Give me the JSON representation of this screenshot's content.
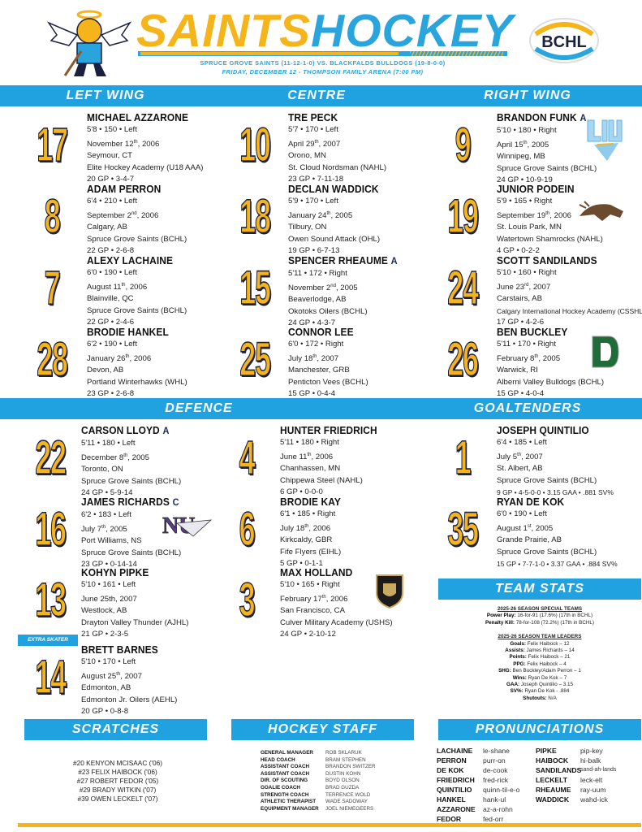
{
  "header": {
    "title_a": "SAINTS",
    "title_b": "HOCKEY",
    "matchup": "SPRUCE GROVE SAINTS (11-12-1-0) VS. BLACKFALDS BULLDOGS (19-8-0-0)",
    "event": "FRIDAY, DECEMBER 12 - THOMPSON FAMILY ARENA (7:00 PM)",
    "league_logo": "BCHL"
  },
  "sections": {
    "left_wing": "LEFT WING",
    "centre": "CENTRE",
    "right_wing": "RIGHT WING",
    "defence": "DEFENCE",
    "goaltenders": "GOALTENDERS",
    "team_stats": "TEAM STATS",
    "scratches": "SCRATCHES",
    "hockey_staff": "HOCKEY STAFF",
    "pronunciations": "PRONUNCIATIONS"
  },
  "extra_skater": "EXTRA SKATER",
  "roster": {
    "left_wing": [
      {
        "number": "17",
        "name": "MICHAEL AZZARONE",
        "body": "5'8 • 150 • Left",
        "date": "November 12",
        "ord": "th",
        "year": ", 2006",
        "hometown": "Seymour, CT",
        "team": "Elite Hockey Academy (U18 AAA)",
        "stats": "20 GP • 3-4-7"
      },
      {
        "number": "8",
        "name": "ADAM PERRON",
        "body": "6'4 • 210 • Left",
        "date": "September 2",
        "ord": "nd",
        "year": ", 2006",
        "hometown": "Calgary, AB",
        "team": "Spruce Grove Saints (BCHL)",
        "stats": "22 GP • 2-6-8"
      },
      {
        "number": "7",
        "name": "ALEXY LACHAINE",
        "body": "6'0 • 190 • Left",
        "date": "August 11",
        "ord": "th",
        "year": ", 2006",
        "hometown": "Blainville, QC",
        "team": "Spruce Grove Saints (BCHL)",
        "stats": "22 GP • 2-4-6"
      },
      {
        "number": "28",
        "name": "BRODIE HANKEL",
        "body": "6'2 • 190 • Left",
        "date": "January 26",
        "ord": "th",
        "year": ", 2006",
        "hometown": "Devon, AB",
        "team": "Portland Winterhawks (WHL)",
        "stats": "23 GP • 2-6-8"
      }
    ],
    "centre": [
      {
        "number": "10",
        "name": "TRE PECK",
        "body": "5'7 • 170 • Left",
        "date": "April 29",
        "ord": "th",
        "year": ", 2007",
        "hometown": "Orono, MN",
        "team": "St. Cloud Nordsman (NAHL)",
        "stats": "23 GP • 7-11-18"
      },
      {
        "number": "18",
        "name": "DECLAN WADDICK",
        "body": "5'9 • 170 • Left",
        "date": "January 24",
        "ord": "th",
        "year": ", 2005",
        "hometown": "Tilbury, ON",
        "team": "Owen Sound Attack (OHL)",
        "stats": "19 GP • 6-7-13"
      },
      {
        "number": "15",
        "name": "SPENCER RHEAUME",
        "badge": "A",
        "body": "5'11 • 172 • Right",
        "date": "November 2",
        "ord": "nd",
        "year": ", 2005",
        "hometown": "Beaverlodge, AB",
        "team": "Okotoks Oilers (BCHL)",
        "stats": "24 GP • 4-3-7"
      },
      {
        "number": "25",
        "name": "CONNOR LEE",
        "body": "6'0 • 172 • Right",
        "date": "July 18",
        "ord": "th",
        "year": ", 2007",
        "hometown": "Manchester, GRB",
        "team": "Penticton Vees (BCHL)",
        "stats": "15 GP • 0-4-4"
      }
    ],
    "right_wing": [
      {
        "number": "9",
        "name": "BRANDON FUNK",
        "badge": "A",
        "logo": "liu-logo",
        "body": "5'10 • 180 • Right",
        "date": "April 15",
        "ord": "th",
        "year": ", 2005",
        "hometown": "Winnipeg, MB",
        "team": "Spruce Grove Saints (BCHL)",
        "stats": "24 GP • 10-9-19"
      },
      {
        "number": "19",
        "name": "JUNIOR PODEIN",
        "logo": "mustang-logo",
        "body": "5'9 • 165 • Right",
        "date": "September 19",
        "ord": "th",
        "year": ", 2006",
        "hometown": "St. Louis Park, MN",
        "team": "Watertown Shamrocks (NAHL)",
        "stats": "4 GP • 0-2-2"
      },
      {
        "number": "24",
        "name": "SCOTT SANDILANDS",
        "body": "5'10 • 160 • Right",
        "date": "June 23",
        "ord": "rd",
        "year": ", 2007",
        "hometown": "Carstairs, AB",
        "team": "Calgary International Hockey Academy (CSSHL)",
        "team_small": true,
        "stats": "17 GP • 4-2-6"
      },
      {
        "number": "26",
        "name": "BEN BUCKLEY",
        "logo": "dartmouth-logo",
        "body": "5'11 • 170 • Right",
        "date": "February 8",
        "ord": "th",
        "year": ", 2005",
        "hometown": "Warwick, RI",
        "team": "Alberni Valley Bulldogs (BCHL)",
        "stats": "15 GP • 4-0-4"
      }
    ],
    "defence_a": [
      {
        "number": "22",
        "name": "CARSON LLOYD",
        "badge": "A",
        "body": "5'11 • 180 • Left",
        "date": "December 8",
        "ord": "th",
        "year": ", 2005",
        "hometown": "Toronto, ON",
        "team": "Spruce Grove Saints (BCHL)",
        "stats": "24 GP • 5-9-14"
      },
      {
        "number": "16",
        "name": "JAMES RICHARDS",
        "badge": "C",
        "logo": "niagara-logo",
        "body": "6'2 • 183 • Left",
        "date": "July 7",
        "ord": "th",
        "year": ", 2005",
        "hometown": "Port Williams, NS",
        "team": "Spruce Grove Saints (BCHL)",
        "stats": "23 GP • 0-14-14"
      },
      {
        "number": "13",
        "name": "KOHYN PIPKE",
        "body": "5'10 • 161 • Left",
        "date": "June 25th, 2007",
        "ord": "",
        "year": "",
        "hometown": "Westlock, AB",
        "team": "Drayton Valley Thunder (AJHL)",
        "stats": "21 GP • 2-3-5"
      },
      {
        "number": "14",
        "name": "BRETT BARNES",
        "body": "5'10 • 170 • Left",
        "date": "August 25",
        "ord": "th",
        "year": ", 2007",
        "hometown": "Edmonton, AB",
        "team": "Edmonton Jr. Oilers (AEHL)",
        "stats": "20 GP • 0-8-8"
      }
    ],
    "defence_b": [
      {
        "number": "4",
        "name": "HUNTER FRIEDRICH",
        "body": "5'11 • 180 • Right",
        "date": "June 11",
        "ord": "th",
        "year": ", 2006",
        "hometown": "Chanhassen, MN",
        "team": "Chippewa Steel (NAHL)",
        "stats": "6 GP • 0-0-0"
      },
      {
        "number": "6",
        "name": "BRODIE KAY",
        "body": "6'1 • 185 • Right",
        "date": "July 18",
        "ord": "th",
        "year": ", 2006",
        "hometown": "Kirkcaldy, GBR",
        "team": "Fife Flyers (EIHL)",
        "stats": "5 GP • 0-1-1"
      },
      {
        "number": "3",
        "name": "MAX HOLLAND",
        "logo": "army-logo",
        "body": "5'10 • 165 • Right",
        "date": "February 17",
        "ord": "th",
        "year": ", 2006",
        "hometown": "San Francisco, CA",
        "team": "Culver Military Academy (USHS)",
        "stats": "24 GP • 2-10-12"
      }
    ],
    "goaltenders": [
      {
        "number": "1",
        "name": "JOSEPH QUINTILIO",
        "body": "6'4 • 185 • Left",
        "date": "July 5",
        "ord": "th",
        "year": ", 2007",
        "hometown": "St. Albert, AB",
        "team": "Spruce Grove Saints (BCHL)",
        "stats": "9 GP • 4-5-0-0 • 3.15 GAA • .881 SV%",
        "stats_small": true
      },
      {
        "number": "35",
        "name": "RYAN DE KOK",
        "body": "6'0 • 190 • Left",
        "date": "August 1",
        "ord": "st",
        "year": ", 2005",
        "hometown": "Grande Prairie, AB",
        "team": "Spruce Grove Saints (BCHL)",
        "stats": "15 GP • 7-7-1-0 • 3.37 GAA • .884 SV%",
        "stats_small": true
      }
    ]
  },
  "team_stats": {
    "special_heading": "2025-26 SEASON SPECIAL TEAMS",
    "special": [
      {
        "label": "Power Play:",
        "value": " 16-for-91 (17.6%) (17th in BCHL)"
      },
      {
        "label": "Penalty Kill:",
        "value": " 78-for-108 (72.2%) (17th in BCHL)"
      }
    ],
    "leaders_heading": "2025-26 SEASON TEAM LEADERS",
    "leaders": [
      {
        "label": "Goals:",
        "value": " Felix Haibock – 12"
      },
      {
        "label": "Assists:",
        "value": " James Richards – 14"
      },
      {
        "label": "Points:",
        "value": " Felix Haibock – 21"
      },
      {
        "label": "PPG:",
        "value": " Felix Haibock – 4"
      },
      {
        "label": "SHG:",
        "value": " Ben Buckley/Adam Perron – 1"
      },
      {
        "label": "Wins:",
        "value": " Ryan De Kok – 7"
      },
      {
        "label": "GAA:",
        "value": " Joseph Quintilio – 3.15"
      },
      {
        "label": "SV%:",
        "value": " Ryan De Kok - .884"
      },
      {
        "label": "Shutouts:",
        "value": " N/A"
      }
    ]
  },
  "scratches": [
    "#20 KENYON MCISAAC ('06)",
    "#23 FELIX HAIBOCK ('06)",
    "#27 ROBERT FEDOR ('05)",
    "#29 BRADY WITKIN ('07)",
    "#39 OWEN LECKELT ('07)"
  ],
  "staff": [
    {
      "role": "GENERAL MANAGER",
      "name": "ROB SKLARUK"
    },
    {
      "role": "HEAD COACH",
      "name": "BRAM STEPHEN"
    },
    {
      "role": "ASSISTANT COACH",
      "name": "BRANDON SWITZER"
    },
    {
      "role": "ASSISTANT COACH",
      "name": "DUSTIN KOHN"
    },
    {
      "role": "DIR. OF SCOUTING",
      "name": "BOYD OLSON"
    },
    {
      "role": "GOALIE COACH",
      "name": "BRAD GUZDA"
    },
    {
      "role": "STRENGTH COACH",
      "name": "TERRENCE WOLD"
    },
    {
      "role": "ATHLETIC THERAPIST",
      "name": "WADE SADOWAY"
    },
    {
      "role": "EQUIPMENT MANAGER",
      "name": "JOEL NIEMEGEERS"
    }
  ],
  "pronunciations": [
    [
      {
        "name": "LACHAINE",
        "say": "le-shane"
      },
      {
        "name": "PERRON",
        "say": "purr-on"
      },
      {
        "name": "DE KOK",
        "say": "de-cook"
      },
      {
        "name": "FRIEDRICH",
        "say": "fred-rick"
      },
      {
        "name": "QUINTILIO",
        "say": "quinn-til-e-o"
      },
      {
        "name": "HANKEL",
        "say": "hank-ul"
      },
      {
        "name": "AZZARONE",
        "say": "az-a-rohn"
      },
      {
        "name": "FEDOR",
        "say": "fed-orr"
      }
    ],
    [
      {
        "name": "PIPKE",
        "say": "pip-key"
      },
      {
        "name": "HAIBOCK",
        "say": "hi-balk"
      },
      {
        "name": "SANDILANDS",
        "say": "sand-ah-lands"
      },
      {
        "name": "LECKELT",
        "say": "leck-elt"
      },
      {
        "name": "RHEAUME",
        "say": "ray-uum"
      },
      {
        "name": "WADDICK",
        "say": "wahd-ick"
      }
    ]
  ],
  "colors": {
    "yellow": "#f4b41a",
    "blue": "#1fa2df",
    "navy": "#1b2040"
  }
}
